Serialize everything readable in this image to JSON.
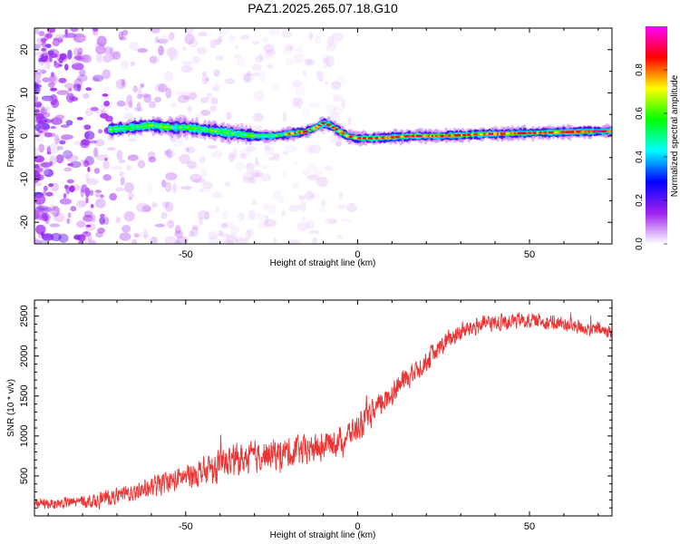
{
  "title": "PAZ1.2025.265.07.18.G10",
  "chart_data": [
    {
      "type": "heatmap",
      "name": "spectrogram",
      "title": "PAZ1.2025.265.07.18.G10",
      "xlabel": "Height of straight line (km)",
      "ylabel": "Frequency (Hz)",
      "xlim": [
        -94,
        74
      ],
      "ylim": [
        -25,
        25
      ],
      "x_ticks": [
        -50,
        0,
        50
      ],
      "y_ticks": [
        -20,
        -10,
        0,
        10,
        20
      ],
      "colorbar": {
        "label": "Normalized spectral amplitude",
        "range": [
          0.0,
          1.0
        ],
        "ticks": [
          "0.0",
          "0.2",
          "0.4",
          "0.6",
          "0.8"
        ],
        "stops": [
          "#ffffff",
          "#a020f0",
          "#0000ff",
          "#00ffff",
          "#00ff00",
          "#ffff00",
          "#ff0000",
          "#ff00ff"
        ]
      },
      "ridge": {
        "x": [
          -72,
          -65,
          -60,
          -55,
          -50,
          -45,
          -40,
          -35,
          -30,
          -25,
          -20,
          -15,
          -12,
          -10,
          -8,
          -5,
          -3,
          0,
          5,
          10,
          15,
          20,
          25,
          30,
          35,
          40,
          45,
          50,
          55,
          60,
          65,
          70,
          74
        ],
        "freq": [
          1.5,
          2.0,
          2.5,
          2.0,
          2.0,
          1.5,
          1.0,
          0.5,
          0.0,
          0.0,
          0.5,
          1.0,
          2.0,
          3.0,
          2.5,
          1.0,
          0.0,
          -0.5,
          -0.5,
          -0.3,
          0.0,
          0.0,
          0.0,
          0.2,
          0.4,
          0.5,
          0.6,
          0.7,
          0.8,
          0.9,
          1.0,
          1.1,
          1.1
        ]
      },
      "noise_region_x": [
        -94,
        -60
      ]
    },
    {
      "type": "line",
      "name": "snr",
      "xlabel": "Height of straight line (km)",
      "ylabel": "SNR (10 * v/v)",
      "xlim": [
        -94,
        74
      ],
      "ylim": [
        0,
        2700
      ],
      "x_ticks": [
        -50,
        0,
        50
      ],
      "y_ticks": [
        500,
        1000,
        1500,
        2000,
        2500
      ],
      "color": "#ee3333",
      "trend": {
        "x": [
          -94,
          -85,
          -75,
          -65,
          -55,
          -45,
          -35,
          -25,
          -15,
          -5,
          0,
          5,
          10,
          15,
          20,
          25,
          30,
          35,
          40,
          45,
          50,
          55,
          60,
          65,
          70,
          74
        ],
        "y": [
          150,
          160,
          200,
          300,
          420,
          560,
          700,
          780,
          820,
          950,
          1100,
          1300,
          1550,
          1750,
          1950,
          2150,
          2300,
          2380,
          2420,
          2440,
          2450,
          2430,
          2400,
          2360,
          2320,
          2300
        ]
      },
      "noise_amplitude": [
        [
          -94,
          90
        ],
        [
          -60,
          200
        ],
        [
          -40,
          320
        ],
        [
          -10,
          300
        ],
        [
          10,
          260
        ],
        [
          30,
          200
        ],
        [
          50,
          160
        ],
        [
          74,
          160
        ]
      ]
    }
  ]
}
